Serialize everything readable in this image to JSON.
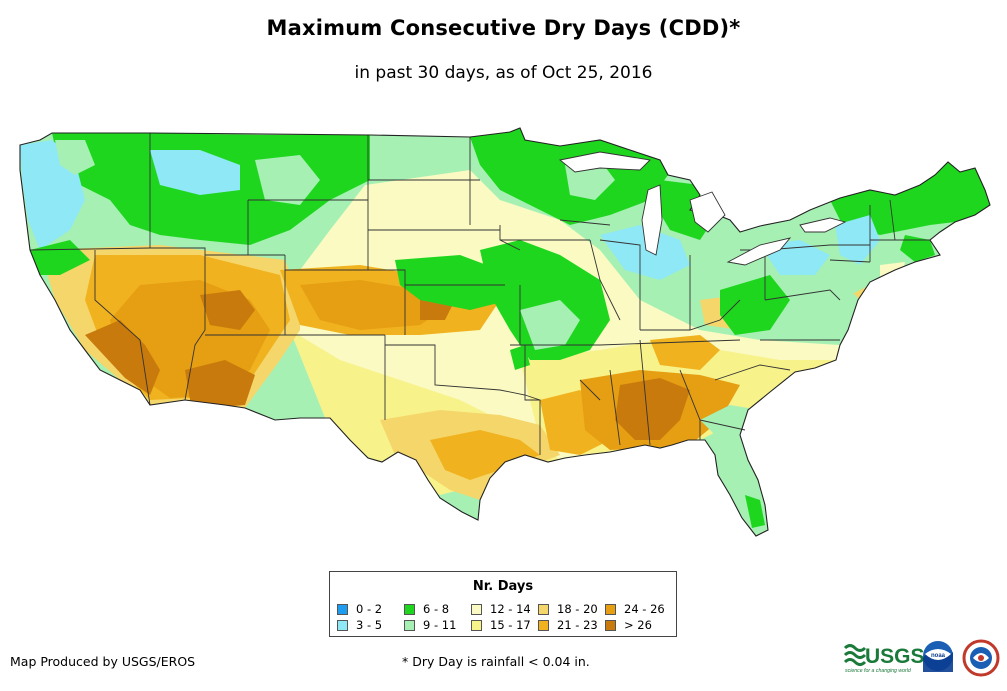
{
  "title": "Maximum Consecutive Dry Days (CDD)*",
  "subtitle": "in past 30 days, as of Oct 25, 2016",
  "legend": {
    "title": "Nr. Days",
    "classes": [
      {
        "label": "0 - 2",
        "color": "#1e9cf0"
      },
      {
        "label": "3 - 5",
        "color": "#8fe8f5"
      },
      {
        "label": "6 - 8",
        "color": "#1fd61f"
      },
      {
        "label": "9 - 11",
        "color": "#a6f0b4"
      },
      {
        "label": "12 - 14",
        "color": "#fafac2"
      },
      {
        "label": "15 - 17",
        "color": "#f7f28a"
      },
      {
        "label": "18 - 20",
        "color": "#f5d66a"
      },
      {
        "label": "21 - 23",
        "color": "#f0b21e"
      },
      {
        "label": "24 - 26",
        "color": "#e69e12"
      },
      {
        "label": "> 26",
        "color": "#c97a0c"
      }
    ]
  },
  "credit": "Map Produced by USGS/EROS",
  "footnote": "* Dry Day is rainfall < 0.04 in.",
  "logos": {
    "usgs": "USGS",
    "usgs_tagline": "science for a changing world",
    "noaa": "noaa"
  }
}
